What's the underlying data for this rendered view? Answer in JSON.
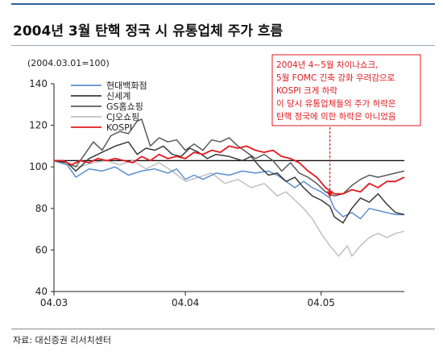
{
  "title": "2004년 3월 탄핵 정국 시 유통업체 주가 흐름",
  "source": "자료: 대신증권 리서치센터",
  "chart_data": {
    "type": "line",
    "index_note": "(2004.03.01=100)",
    "x_start": 0,
    "x_end": 80,
    "x_ticks": [
      {
        "x": 0,
        "label": "04.03"
      },
      {
        "x": 30,
        "label": "04.04"
      },
      {
        "x": 61,
        "label": "04.05"
      }
    ],
    "ylim": [
      40,
      140
    ],
    "y_ticks": [
      40,
      60,
      80,
      100,
      120,
      140
    ],
    "reference_line": 103,
    "series": [
      {
        "name": "현대백화점",
        "color": "#5b8fd0",
        "points": [
          [
            0,
            103
          ],
          [
            3,
            101
          ],
          [
            5,
            95
          ],
          [
            8,
            99
          ],
          [
            11,
            98
          ],
          [
            14,
            100
          ],
          [
            17,
            96
          ],
          [
            20,
            98
          ],
          [
            23,
            99
          ],
          [
            26,
            97
          ],
          [
            28,
            99
          ],
          [
            30,
            94
          ],
          [
            32,
            96
          ],
          [
            34,
            94
          ],
          [
            37,
            97
          ],
          [
            40,
            96
          ],
          [
            43,
            98
          ],
          [
            46,
            97
          ],
          [
            49,
            98
          ],
          [
            51,
            96
          ],
          [
            53,
            93
          ],
          [
            55,
            90
          ],
          [
            57,
            93
          ],
          [
            59,
            90
          ],
          [
            61,
            88
          ],
          [
            63,
            85
          ],
          [
            64,
            80
          ],
          [
            66,
            76
          ],
          [
            68,
            78
          ],
          [
            70,
            75
          ],
          [
            72,
            80
          ],
          [
            74,
            79
          ],
          [
            76,
            78
          ],
          [
            78,
            77
          ],
          [
            80,
            77
          ]
        ]
      },
      {
        "name": "신세계",
        "color": "#3a3a3a",
        "points": [
          [
            0,
            103
          ],
          [
            3,
            102
          ],
          [
            5,
            98
          ],
          [
            8,
            104
          ],
          [
            11,
            107
          ],
          [
            14,
            110
          ],
          [
            17,
            112
          ],
          [
            19,
            106
          ],
          [
            21,
            109
          ],
          [
            23,
            108
          ],
          [
            25,
            110
          ],
          [
            27,
            106
          ],
          [
            29,
            105
          ],
          [
            31,
            109
          ],
          [
            33,
            107
          ],
          [
            35,
            104
          ],
          [
            37,
            106
          ],
          [
            40,
            105
          ],
          [
            43,
            103
          ],
          [
            45,
            105
          ],
          [
            47,
            100
          ],
          [
            49,
            96
          ],
          [
            51,
            97
          ],
          [
            53,
            93
          ],
          [
            55,
            95
          ],
          [
            57,
            90
          ],
          [
            59,
            86
          ],
          [
            61,
            84
          ],
          [
            63,
            81
          ],
          [
            64,
            76
          ],
          [
            66,
            73
          ],
          [
            68,
            80
          ],
          [
            70,
            85
          ],
          [
            72,
            83
          ],
          [
            74,
            87
          ],
          [
            76,
            82
          ],
          [
            78,
            78
          ],
          [
            80,
            77
          ]
        ]
      },
      {
        "name": "GS홈쇼핑",
        "color": "#5a5a5a",
        "points": [
          [
            0,
            103
          ],
          [
            3,
            102
          ],
          [
            5,
            100
          ],
          [
            7,
            106
          ],
          [
            9,
            112
          ],
          [
            11,
            108
          ],
          [
            13,
            115
          ],
          [
            15,
            117
          ],
          [
            17,
            116
          ],
          [
            19,
            122
          ],
          [
            20,
            123
          ],
          [
            22,
            110
          ],
          [
            24,
            114
          ],
          [
            26,
            112
          ],
          [
            28,
            113
          ],
          [
            30,
            108
          ],
          [
            32,
            111
          ],
          [
            34,
            108
          ],
          [
            36,
            113
          ],
          [
            38,
            112
          ],
          [
            40,
            114
          ],
          [
            42,
            110
          ],
          [
            44,
            107
          ],
          [
            46,
            104
          ],
          [
            48,
            106
          ],
          [
            50,
            103
          ],
          [
            52,
            98
          ],
          [
            54,
            102
          ],
          [
            56,
            97
          ],
          [
            58,
            95
          ],
          [
            60,
            92
          ],
          [
            62,
            88
          ],
          [
            64,
            86
          ],
          [
            66,
            87
          ],
          [
            68,
            91
          ],
          [
            70,
            94
          ],
          [
            72,
            96
          ],
          [
            74,
            95
          ],
          [
            76,
            96
          ],
          [
            78,
            97
          ],
          [
            80,
            98
          ]
        ]
      },
      {
        "name": "CJ오쇼핑",
        "color": "#c0c0c0",
        "points": [
          [
            0,
            103
          ],
          [
            3,
            101
          ],
          [
            6,
            100
          ],
          [
            9,
            102
          ],
          [
            12,
            103
          ],
          [
            15,
            101
          ],
          [
            18,
            103
          ],
          [
            21,
            99
          ],
          [
            24,
            102
          ],
          [
            27,
            98
          ],
          [
            30,
            93
          ],
          [
            33,
            95
          ],
          [
            36,
            97
          ],
          [
            39,
            92
          ],
          [
            42,
            94
          ],
          [
            45,
            90
          ],
          [
            48,
            92
          ],
          [
            51,
            86
          ],
          [
            53,
            88
          ],
          [
            55,
            84
          ],
          [
            57,
            80
          ],
          [
            59,
            75
          ],
          [
            61,
            68
          ],
          [
            63,
            62
          ],
          [
            65,
            57
          ],
          [
            67,
            62
          ],
          [
            68,
            57
          ],
          [
            70,
            62
          ],
          [
            72,
            66
          ],
          [
            74,
            68
          ],
          [
            76,
            66
          ],
          [
            78,
            68
          ],
          [
            80,
            69
          ]
        ]
      },
      {
        "name": "KOSPI",
        "color": "#e0191e",
        "points": [
          [
            0,
            103
          ],
          [
            2,
            103
          ],
          [
            4,
            101
          ],
          [
            6,
            103
          ],
          [
            8,
            102
          ],
          [
            10,
            104
          ],
          [
            12,
            103
          ],
          [
            14,
            104
          ],
          [
            16,
            103
          ],
          [
            18,
            102
          ],
          [
            20,
            105
          ],
          [
            22,
            103
          ],
          [
            24,
            106
          ],
          [
            26,
            104
          ],
          [
            28,
            105
          ],
          [
            30,
            104
          ],
          [
            32,
            107
          ],
          [
            34,
            106
          ],
          [
            36,
            108
          ],
          [
            38,
            107
          ],
          [
            40,
            110
          ],
          [
            42,
            109
          ],
          [
            44,
            110
          ],
          [
            46,
            108
          ],
          [
            48,
            107
          ],
          [
            50,
            108
          ],
          [
            52,
            105
          ],
          [
            54,
            104
          ],
          [
            56,
            102
          ],
          [
            58,
            98
          ],
          [
            60,
            95
          ],
          [
            62,
            90
          ],
          [
            64,
            87
          ],
          [
            66,
            87
          ],
          [
            68,
            89
          ],
          [
            70,
            88
          ],
          [
            72,
            92
          ],
          [
            74,
            90
          ],
          [
            76,
            93
          ],
          [
            78,
            93
          ],
          [
            80,
            95
          ]
        ]
      }
    ],
    "annotation": {
      "lines": [
        "2004년 4~5월 차이나쇼크,",
        "5월 FOMC 긴축 강화 우려감으로",
        "KOSPI 크게 하락",
        "이 당시 유통업체들의 주가 하락은",
        "탄핵 정국에 의한 하락은 아니었음"
      ],
      "arrow_to": [
        63,
        84
      ],
      "color": "#e0191e"
    },
    "legend_position": "top-left",
    "grid": false
  }
}
